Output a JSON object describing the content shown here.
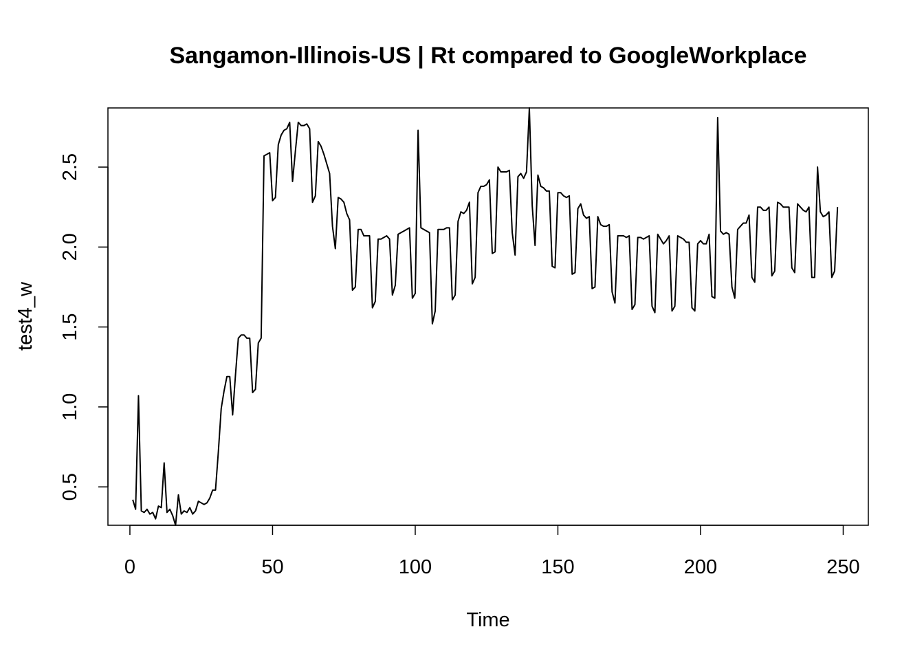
{
  "chart_data": {
    "type": "line",
    "title": "Sangamon-Illinois-US | Rt compared to GoogleWorkplace",
    "xlabel": "Time",
    "ylabel": "test4_w",
    "xlim": [
      -7.7,
      258.8
    ],
    "ylim": [
      0.26,
      2.87
    ],
    "xticks": [
      0,
      50,
      100,
      150,
      200,
      250
    ],
    "yticks": [
      0.5,
      1.0,
      1.5,
      2.0,
      2.5
    ],
    "xtick_labels": [
      "0",
      "50",
      "100",
      "150",
      "200",
      "250"
    ],
    "ytick_labels": [
      "0.5",
      "1.0",
      "1.5",
      "2.0",
      "2.5"
    ],
    "grid": false,
    "line_color": "#000000",
    "series": [
      {
        "x": [
          1,
          2,
          3,
          4,
          5,
          6,
          7,
          8,
          9,
          10,
          11,
          12,
          13,
          14,
          15,
          16,
          17,
          18,
          19,
          20,
          21,
          22,
          23,
          24,
          25,
          26,
          27,
          28,
          29,
          30,
          31,
          32,
          33,
          34,
          35,
          36,
          37,
          38,
          39,
          40,
          41,
          42,
          43,
          44,
          45,
          46,
          47,
          48,
          49,
          50,
          51,
          52,
          53,
          54,
          55,
          56,
          57,
          58,
          59,
          60,
          61,
          62,
          63,
          64,
          65,
          66,
          67,
          68,
          69,
          70,
          71,
          72,
          73,
          74,
          75,
          76,
          77,
          78,
          79,
          80,
          81,
          82,
          83,
          84,
          85,
          86,
          87,
          88,
          89,
          90,
          91,
          92,
          93,
          94,
          95,
          96,
          97,
          98,
          99,
          100,
          101,
          102,
          103,
          104,
          105,
          106,
          107,
          108,
          109,
          110,
          111,
          112,
          113,
          114,
          115,
          116,
          117,
          118,
          119,
          120,
          121,
          122,
          123,
          124,
          125,
          126,
          127,
          128,
          129,
          130,
          131,
          132,
          133,
          134,
          135,
          136,
          137,
          138,
          139,
          140,
          141,
          142,
          143,
          144,
          145,
          146,
          147,
          148,
          149,
          150,
          151,
          152,
          153,
          154,
          155,
          156,
          157,
          158,
          159,
          160,
          161,
          162,
          163,
          164,
          165,
          166,
          167,
          168,
          169,
          170,
          171,
          172,
          173,
          174,
          175,
          176,
          177,
          178,
          179,
          180,
          181,
          182,
          183,
          184,
          185,
          186,
          187,
          188,
          189,
          190,
          191,
          192,
          193,
          194,
          195,
          196,
          197,
          198,
          199,
          200,
          201,
          202,
          203,
          204,
          205,
          206,
          207,
          208,
          209,
          210,
          211,
          212,
          213,
          214,
          215,
          216,
          217,
          218,
          219,
          220,
          221,
          222,
          223,
          224,
          225,
          226,
          227,
          228,
          229,
          230,
          231,
          232,
          233,
          234,
          235,
          236,
          237,
          238,
          239,
          240,
          241,
          242,
          243,
          244,
          245,
          246,
          247,
          248
        ],
        "values": [
          0.42,
          0.36,
          1.07,
          0.35,
          0.34,
          0.36,
          0.33,
          0.34,
          0.3,
          0.38,
          0.37,
          0.65,
          0.34,
          0.36,
          0.32,
          0.26,
          0.45,
          0.33,
          0.35,
          0.34,
          0.37,
          0.33,
          0.35,
          0.41,
          0.4,
          0.39,
          0.4,
          0.43,
          0.48,
          0.48,
          0.72,
          0.99,
          1.1,
          1.19,
          1.19,
          0.95,
          1.2,
          1.43,
          1.45,
          1.45,
          1.43,
          1.43,
          1.09,
          1.11,
          1.4,
          1.43,
          2.57,
          2.58,
          2.59,
          2.29,
          2.31,
          2.64,
          2.7,
          2.73,
          2.74,
          2.78,
          2.41,
          2.6,
          2.78,
          2.76,
          2.76,
          2.77,
          2.74,
          2.28,
          2.32,
          2.66,
          2.63,
          2.58,
          2.52,
          2.46,
          2.13,
          1.99,
          2.31,
          2.3,
          2.28,
          2.21,
          2.17,
          1.73,
          1.75,
          2.11,
          2.11,
          2.07,
          2.07,
          2.07,
          1.62,
          1.66,
          2.05,
          2.05,
          2.06,
          2.07,
          2.05,
          1.7,
          1.76,
          2.08,
          2.09,
          2.1,
          2.11,
          2.12,
          1.68,
          1.71,
          2.73,
          2.12,
          2.11,
          2.1,
          2.09,
          1.52,
          1.6,
          2.11,
          2.11,
          2.11,
          2.12,
          2.12,
          1.67,
          1.7,
          2.16,
          2.22,
          2.21,
          2.23,
          2.28,
          1.77,
          1.81,
          2.34,
          2.38,
          2.38,
          2.39,
          2.42,
          1.96,
          1.97,
          2.5,
          2.47,
          2.47,
          2.47,
          2.48,
          2.09,
          1.95,
          2.44,
          2.46,
          2.43,
          2.47,
          2.87,
          2.26,
          2.01,
          2.45,
          2.38,
          2.37,
          2.35,
          2.35,
          1.88,
          1.87,
          2.34,
          2.34,
          2.32,
          2.31,
          2.32,
          1.83,
          1.84,
          2.24,
          2.27,
          2.2,
          2.18,
          2.19,
          1.74,
          1.75,
          2.19,
          2.14,
          2.13,
          2.13,
          2.14,
          1.72,
          1.65,
          2.07,
          2.07,
          2.07,
          2.06,
          2.07,
          1.61,
          1.64,
          2.06,
          2.06,
          2.05,
          2.06,
          2.07,
          1.63,
          1.59,
          2.08,
          2.05,
          2.02,
          2.04,
          2.07,
          1.6,
          1.63,
          2.07,
          2.06,
          2.05,
          2.03,
          2.03,
          1.62,
          1.6,
          2.02,
          2.04,
          2.02,
          2.02,
          2.08,
          1.69,
          1.68,
          2.81,
          2.1,
          2.08,
          2.09,
          2.08,
          1.75,
          1.68,
          2.11,
          2.13,
          2.15,
          2.15,
          2.2,
          1.81,
          1.78,
          2.25,
          2.25,
          2.23,
          2.23,
          2.25,
          1.82,
          1.85,
          2.28,
          2.27,
          2.25,
          2.25,
          2.25,
          1.87,
          1.84,
          2.27,
          2.25,
          2.23,
          2.22,
          2.25,
          1.81,
          1.81,
          2.5,
          2.22,
          2.19,
          2.2,
          2.22,
          1.81,
          1.85,
          2.25
        ]
      }
    ]
  }
}
